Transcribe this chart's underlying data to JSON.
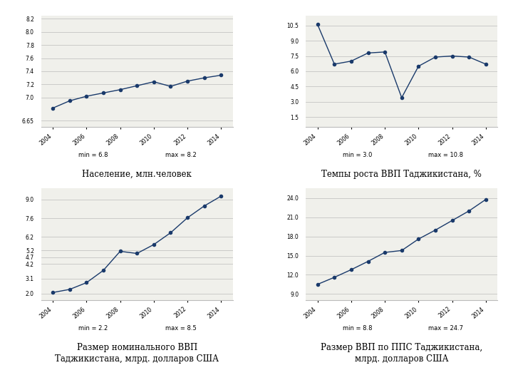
{
  "years": [
    2004,
    2005,
    2006,
    2007,
    2008,
    2009,
    2010,
    2011,
    2012,
    2013,
    2014
  ],
  "population": [
    6.84,
    6.95,
    7.02,
    7.07,
    7.12,
    7.18,
    7.24,
    7.17,
    7.25,
    7.3,
    7.34
  ],
  "pop_min_label": "6.8",
  "pop_max_label": "8.2",
  "pop_title": "Население, млн.человек",
  "pop_yticks": [
    6.65,
    7.0,
    7.2,
    7.4,
    7.6,
    7.8,
    8.0,
    8.2
  ],
  "pop_ytick_labels": [
    "6.65",
    "7.0",
    "7.2",
    "7.4",
    "7.6",
    "7.8",
    "8.0",
    "8.2"
  ],
  "pop_ylim": [
    6.55,
    8.25
  ],
  "gdp_growth": [
    10.6,
    6.7,
    7.0,
    7.8,
    7.9,
    3.4,
    6.5,
    7.4,
    7.5,
    7.4,
    6.7
  ],
  "gdp_growth_min_label": "3.0",
  "gdp_growth_max_label": "10.8",
  "gdp_growth_title": "Темпы роста ВВП Таджикистана, %",
  "gdp_yticks": [
    1.5,
    3.0,
    4.5,
    6.0,
    7.5,
    9.0,
    10.5
  ],
  "gdp_ytick_labels": [
    "1.5",
    "3.0",
    "4.5",
    "6.0",
    "7.5",
    "9.0",
    "10.5"
  ],
  "gdp_ylim": [
    0.5,
    11.5
  ],
  "nominal_gdp": [
    2.08,
    2.31,
    2.81,
    3.72,
    5.14,
    4.98,
    5.64,
    6.52,
    7.63,
    8.51,
    9.24
  ],
  "nominal_min_label": "2.2",
  "nominal_max_label": "8.5",
  "nominal_title": "Размер номинального ВВП\nТаджикистана, млрд. долларов США",
  "nominal_yticks": [
    2.0,
    3.1,
    4.2,
    4.7,
    5.2,
    6.2,
    7.6,
    9.0
  ],
  "nominal_ytick_labels": [
    "2.0",
    "3.1",
    "4.2",
    "4.7",
    "5.2",
    "6.2",
    "7.6",
    "9.0"
  ],
  "nominal_ylim": [
    1.5,
    9.8
  ],
  "ppp_gdp": [
    10.5,
    11.6,
    12.8,
    14.1,
    15.5,
    15.8,
    17.6,
    19.0,
    20.5,
    22.0,
    23.8
  ],
  "ppp_min_label": "8.8",
  "ppp_max_label": "24.7",
  "ppp_title": "Размер ВВП по ППС Таджикистана,\nмлрд. долларов США",
  "ppp_yticks": [
    9.0,
    12.0,
    15.0,
    18.0,
    21.0,
    24.0
  ],
  "ppp_ytick_labels": [
    "9.0",
    "12.0",
    "15.0",
    "18.0",
    "21.0",
    "24.0"
  ],
  "ppp_ylim": [
    8.0,
    25.5
  ],
  "line_color": "#1a3a6b",
  "marker_size": 3,
  "bg_color": "#f0f0eb",
  "grid_color": "#bbbbbb",
  "fig_bg": "#ffffff",
  "x_ticks": [
    2004,
    2006,
    2008,
    2010,
    2012,
    2014
  ],
  "xlim": [
    2003.3,
    2014.7
  ]
}
